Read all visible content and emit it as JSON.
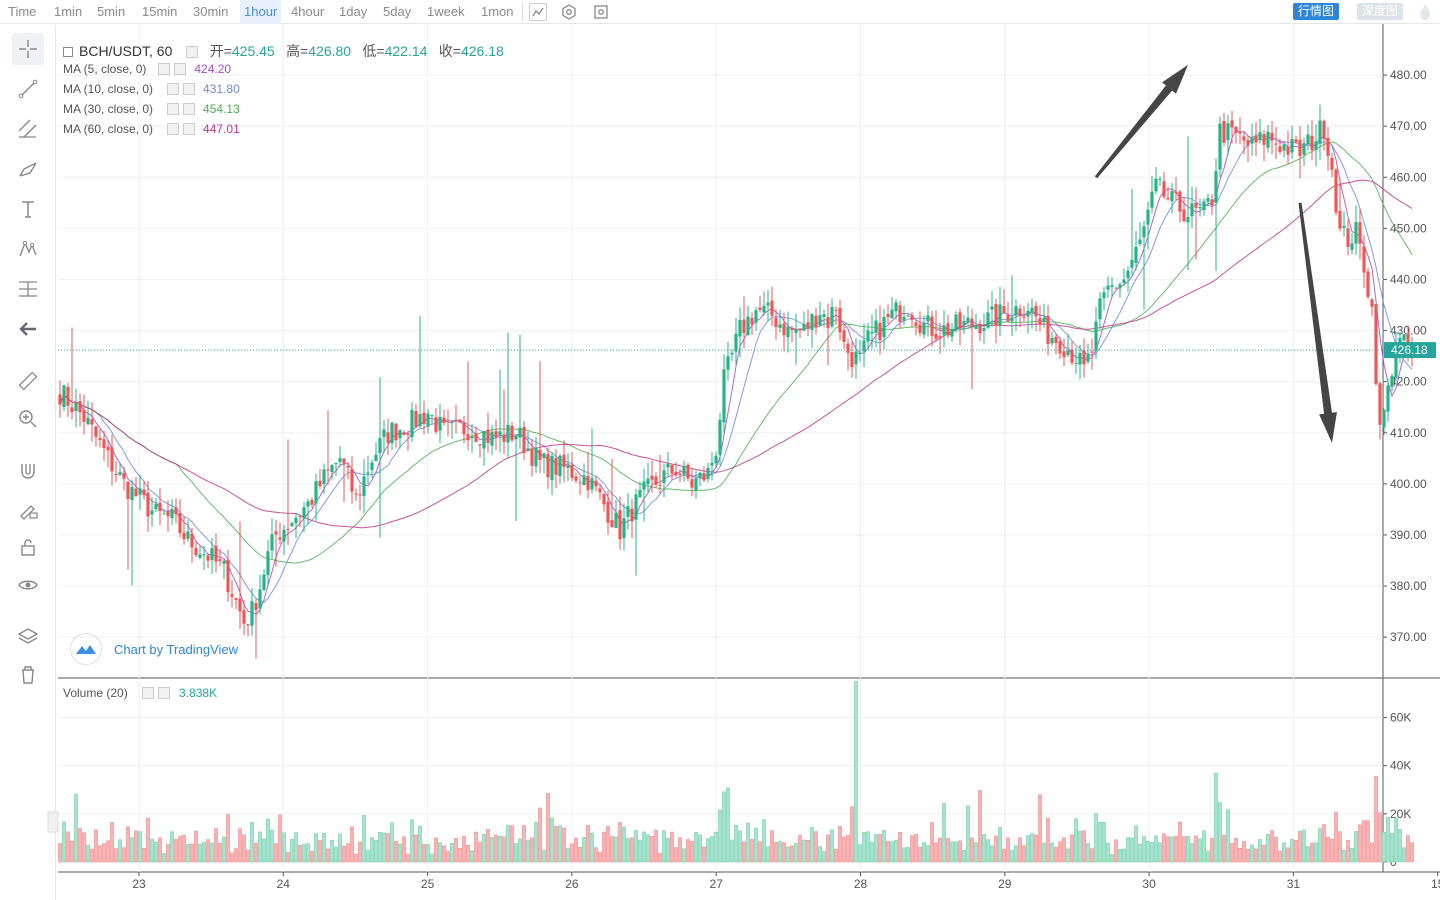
{
  "toolbar": {
    "timeframes": [
      "Time",
      "1min",
      "5min",
      "15min",
      "30min",
      "1hour",
      "4hour",
      "1day",
      "5day",
      "1week",
      "1mon"
    ],
    "active_timeframe": "1hour",
    "view_candle": "行情图",
    "view_depth": "深度图"
  },
  "header": {
    "symbol": "BCH/USDT, 60",
    "open_label": "开=",
    "open": "425.45",
    "high_label": "高=",
    "high": "426.80",
    "low_label": "低=",
    "low": "422.14",
    "close_label": "收=",
    "close": "426.18"
  },
  "ma_legend": [
    {
      "label": "MA (5, close, 0)",
      "value": "424.20",
      "color": "#a04cc9"
    },
    {
      "label": "MA (10, close, 0)",
      "value": "431.80",
      "color": "#6f8bd8"
    },
    {
      "label": "MA (30, close, 0)",
      "value": "454.13",
      "color": "#4caf50"
    },
    {
      "label": "MA (60, close, 0)",
      "value": "447.01",
      "color": "#c0358d"
    }
  ],
  "volume_legend": {
    "label": "Volume (20)",
    "value": "3.838K"
  },
  "watermark": "Chart by TradingView",
  "colors": {
    "up": "#26b488",
    "down": "#ef5656",
    "up_vol": "#a8e3cf",
    "down_vol": "#f7b4b4",
    "last_price": "#26a69a"
  },
  "chart_data": {
    "type": "candlestick",
    "x_unit": "hour",
    "x_ticks": [
      "23",
      "24",
      "25",
      "26",
      "27",
      "28",
      "29",
      "30",
      "31",
      "15"
    ],
    "price_axis": {
      "ticks": [
        "480.00",
        "470.00",
        "460.00",
        "450.00",
        "440.00",
        "430.00",
        "420.00",
        "410.00",
        "400.00",
        "390.00",
        "380.00",
        "370.00"
      ],
      "ylim": [
        362,
        490
      ]
    },
    "last_price": "426.18",
    "volume_axis": {
      "ticks": [
        "60K",
        "40K",
        "20K",
        "0"
      ],
      "ylim": [
        0,
        76000
      ]
    },
    "price_path": [
      [
        0,
        418
      ],
      [
        6,
        413
      ],
      [
        12,
        405
      ],
      [
        16,
        400
      ],
      [
        24,
        394
      ],
      [
        28,
        393
      ],
      [
        32,
        389
      ],
      [
        37,
        386
      ],
      [
        41,
        383
      ],
      [
        44,
        377
      ],
      [
        46,
        373
      ],
      [
        48,
        375
      ],
      [
        50,
        380
      ],
      [
        52,
        386
      ],
      [
        54,
        390
      ],
      [
        58,
        393
      ],
      [
        62,
        396
      ],
      [
        66,
        401
      ],
      [
        70,
        405
      ],
      [
        74,
        397
      ],
      [
        78,
        405
      ],
      [
        82,
        410
      ],
      [
        88,
        412
      ],
      [
        92,
        414
      ],
      [
        96,
        410
      ],
      [
        102,
        411
      ],
      [
        108,
        409
      ],
      [
        114,
        410
      ],
      [
        120,
        404
      ],
      [
        126,
        403
      ],
      [
        132,
        401
      ],
      [
        136,
        396
      ],
      [
        140,
        391
      ],
      [
        143,
        395
      ],
      [
        146,
        398
      ],
      [
        150,
        401
      ],
      [
        152,
        402
      ],
      [
        154,
        403
      ],
      [
        158,
        400
      ],
      [
        162,
        402
      ],
      [
        164,
        407
      ],
      [
        166,
        420
      ],
      [
        168,
        425
      ],
      [
        170,
        430
      ],
      [
        174,
        434
      ],
      [
        178,
        433
      ],
      [
        182,
        430
      ],
      [
        186,
        430
      ],
      [
        190,
        434
      ],
      [
        192,
        432
      ],
      [
        194,
        435
      ],
      [
        196,
        427
      ],
      [
        198,
        425
      ],
      [
        200,
        424
      ],
      [
        202,
        428
      ],
      [
        208,
        433
      ],
      [
        212,
        435
      ],
      [
        216,
        431
      ],
      [
        220,
        430
      ],
      [
        226,
        431
      ],
      [
        232,
        432
      ],
      [
        238,
        434
      ],
      [
        242,
        435
      ],
      [
        246,
        430
      ],
      [
        250,
        428
      ],
      [
        254,
        425
      ],
      [
        256,
        422
      ],
      [
        258,
        426
      ],
      [
        260,
        434
      ],
      [
        262,
        438
      ],
      [
        266,
        440
      ],
      [
        270,
        447
      ],
      [
        274,
        458
      ],
      [
        278,
        455
      ],
      [
        282,
        453
      ],
      [
        286,
        453
      ],
      [
        288,
        456
      ],
      [
        290,
        469
      ],
      [
        294,
        468
      ],
      [
        298,
        466
      ],
      [
        302,
        468
      ],
      [
        306,
        466
      ],
      [
        310,
        465
      ],
      [
        314,
        468
      ],
      [
        316,
        470
      ],
      [
        318,
        462
      ],
      [
        320,
        449
      ],
      [
        322,
        448
      ],
      [
        324,
        449
      ],
      [
        326,
        443
      ],
      [
        328,
        434
      ],
      [
        330,
        410
      ],
      [
        332,
        418
      ],
      [
        334,
        428
      ],
      [
        336,
        427
      ],
      [
        338,
        426.18
      ]
    ],
    "annotations": [
      {
        "type": "arrow",
        "direction": "up",
        "from": [
          259,
          460
        ],
        "to": [
          282,
          482
        ]
      },
      {
        "type": "arrow",
        "direction": "down",
        "from": [
          310,
          455
        ],
        "to": [
          318,
          408
        ]
      }
    ],
    "series": [
      {
        "name": "MA (5, close, 0)",
        "value": 424.2
      },
      {
        "name": "MA (10, close, 0)",
        "value": 431.8
      },
      {
        "name": "MA (30, close, 0)",
        "value": 454.13
      },
      {
        "name": "MA (60, close, 0)",
        "value": 447.01
      }
    ]
  }
}
